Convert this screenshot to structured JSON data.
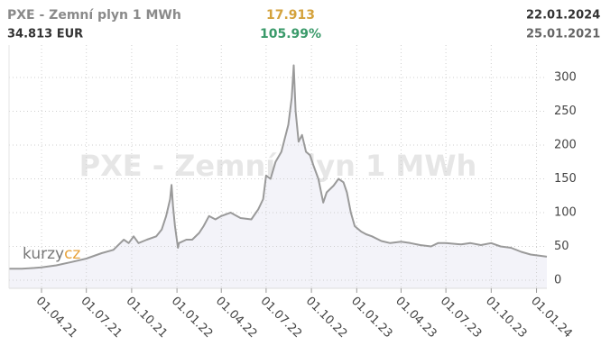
{
  "header": {
    "title": "PXE - Zemní plyn 1 MWh",
    "last": "34.813 EUR",
    "change_abs": "17.913",
    "change_pct": "105.99%",
    "date_to": "22.01.2024",
    "date_from": "25.01.2021"
  },
  "watermark": "PXE - Zemní plyn 1 MWh",
  "logo": {
    "text": "kurzy",
    "accent": "cz"
  },
  "chart_data": {
    "type": "line",
    "color": "#9a9a9a",
    "area_color": "#f3f3f9",
    "grid": true,
    "x": [
      "2021-01-25",
      "2021-02-20",
      "2021-03-15",
      "2021-04-01",
      "2021-05-01",
      "2021-06-01",
      "2021-07-01",
      "2021-08-01",
      "2021-08-25",
      "2021-09-15",
      "2021-09-25",
      "2021-10-05",
      "2021-10-15",
      "2021-11-01",
      "2021-11-20",
      "2021-12-01",
      "2021-12-10",
      "2021-12-18",
      "2021-12-21",
      "2021-12-24",
      "2021-12-28",
      "2022-01-03",
      "2022-01-05",
      "2022-01-20",
      "2022-02-01",
      "2022-02-15",
      "2022-02-24",
      "2022-03-07",
      "2022-03-20",
      "2022-04-01",
      "2022-04-20",
      "2022-05-10",
      "2022-06-01",
      "2022-06-15",
      "2022-06-25",
      "2022-07-01",
      "2022-07-10",
      "2022-07-20",
      "2022-08-01",
      "2022-08-15",
      "2022-08-22",
      "2022-08-26",
      "2022-08-30",
      "2022-09-05",
      "2022-09-12",
      "2022-09-20",
      "2022-09-28",
      "2022-10-05",
      "2022-10-15",
      "2022-10-25",
      "2022-11-01",
      "2022-11-15",
      "2022-11-25",
      "2022-12-05",
      "2022-12-12",
      "2022-12-20",
      "2022-12-28",
      "2023-01-10",
      "2023-01-20",
      "2023-02-01",
      "2023-02-20",
      "2023-03-10",
      "2023-04-01",
      "2023-04-20",
      "2023-05-10",
      "2023-06-01",
      "2023-06-15",
      "2023-07-01",
      "2023-08-01",
      "2023-08-20",
      "2023-09-10",
      "2023-10-01",
      "2023-10-20",
      "2023-11-10",
      "2023-12-01",
      "2023-12-20",
      "2024-01-10",
      "2024-01-22"
    ],
    "values": [
      17,
      17,
      18,
      19,
      22,
      27,
      32,
      40,
      45,
      60,
      55,
      65,
      55,
      60,
      65,
      75,
      95,
      120,
      141,
      110,
      80,
      48,
      55,
      60,
      60,
      70,
      80,
      95,
      90,
      95,
      100,
      92,
      90,
      105,
      120,
      155,
      150,
      175,
      190,
      230,
      270,
      318,
      250,
      205,
      215,
      190,
      185,
      170,
      150,
      115,
      130,
      140,
      150,
      145,
      130,
      100,
      80,
      72,
      68,
      65,
      58,
      55,
      57,
      55,
      52,
      50,
      55,
      55,
      53,
      55,
      52,
      55,
      50,
      48,
      42,
      38,
      36,
      34.813
    ],
    "xlim": [
      "2021-01-25",
      "2024-01-22"
    ],
    "xticks": [
      {
        "value": "2021-04-01",
        "label": "01.04.21"
      },
      {
        "value": "2021-07-01",
        "label": "01.07.21"
      },
      {
        "value": "2021-10-01",
        "label": "01.10.21"
      },
      {
        "value": "2022-01-01",
        "label": "01.01.22"
      },
      {
        "value": "2022-04-01",
        "label": "01.04.22"
      },
      {
        "value": "2022-07-01",
        "label": "01.07.22"
      },
      {
        "value": "2022-10-01",
        "label": "01.10.22"
      },
      {
        "value": "2023-01-01",
        "label": "01.01.23"
      },
      {
        "value": "2023-04-01",
        "label": "01.04.23"
      },
      {
        "value": "2023-07-01",
        "label": "01.07.23"
      },
      {
        "value": "2023-10-01",
        "label": "01.10.23"
      },
      {
        "value": "2024-01-01",
        "label": "01.01.24"
      }
    ],
    "ylim": [
      -12,
      348
    ],
    "yticks": [
      0,
      50,
      100,
      150,
      200,
      250,
      300
    ]
  }
}
